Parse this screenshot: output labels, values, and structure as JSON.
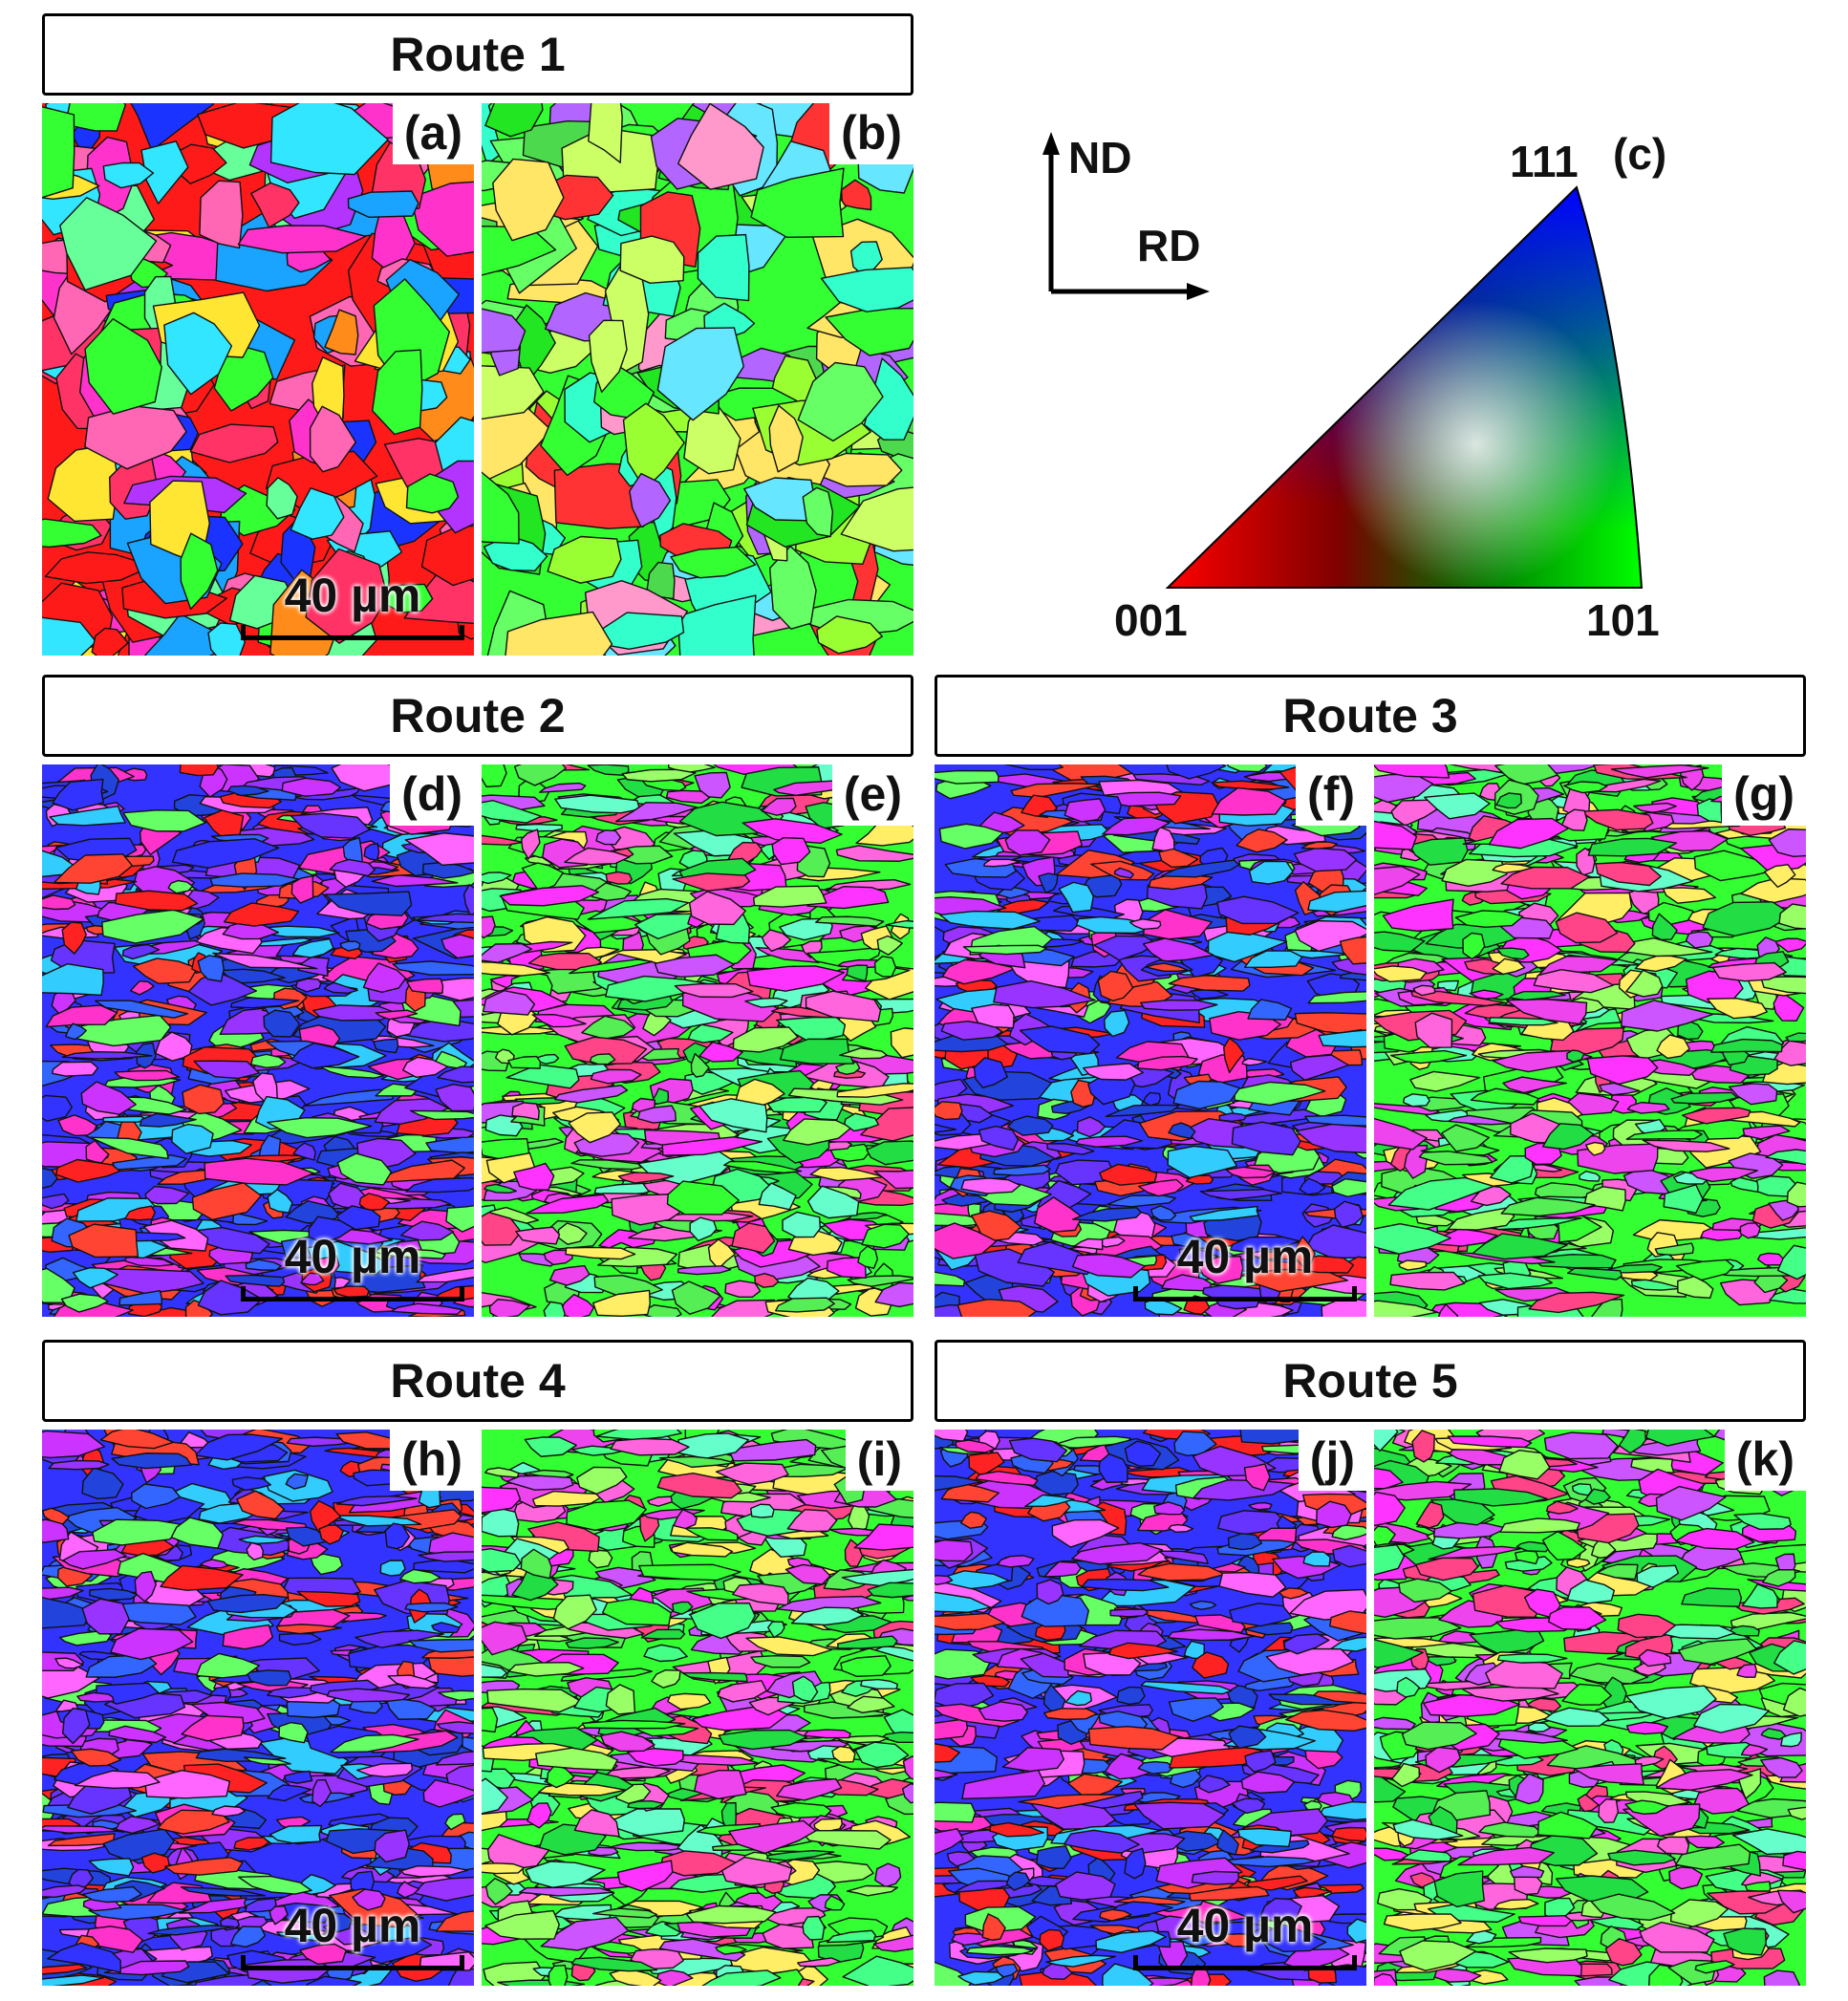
{
  "routes": [
    {
      "title": "Route 1",
      "panels": [
        {
          "label": "(a)",
          "scale": "40 µm",
          "palette": "route1_rgb"
        },
        {
          "label": "(b)",
          "scale": "",
          "palette": "route1_green"
        }
      ]
    },
    {
      "title": "Route 2",
      "panels": [
        {
          "label": "(d)",
          "scale": "40 µm",
          "palette": "rolled_rb"
        },
        {
          "label": "(e)",
          "scale": "",
          "palette": "rolled_gm"
        }
      ]
    },
    {
      "title": "Route 3",
      "panels": [
        {
          "label": "(f)",
          "scale": "40 µm",
          "palette": "rolled_rb"
        },
        {
          "label": "(g)",
          "scale": "",
          "palette": "rolled_gm"
        }
      ]
    },
    {
      "title": "Route 4",
      "panels": [
        {
          "label": "(h)",
          "scale": "40 µm",
          "palette": "rolled_rb"
        },
        {
          "label": "(i)",
          "scale": "",
          "palette": "rolled_gm"
        }
      ]
    },
    {
      "title": "Route 5",
      "panels": [
        {
          "label": "(j)",
          "scale": "40 µm",
          "palette": "rolled_rb"
        },
        {
          "label": "(k)",
          "scale": "",
          "palette": "rolled_gm"
        }
      ]
    }
  ],
  "legend": {
    "label": "(c)",
    "axis_vertical": "ND",
    "axis_horizontal": "RD",
    "corner_001": "001",
    "corner_101": "101",
    "corner_111": "111",
    "colors": {
      "c001": "#ff0000",
      "c101": "#00ff00",
      "c111": "#0000ff"
    }
  },
  "palettes": {
    "route1_rgb": [
      "#ff1a1a",
      "#ff8c1a",
      "#1a33ff",
      "#33ff33",
      "#ff33cc",
      "#33e6ff",
      "#b333ff",
      "#ffe633",
      "#ff3366",
      "#1aa3ff",
      "#66ff99",
      "#ff66b3"
    ],
    "route1_green": [
      "#33ff33",
      "#22e622",
      "#66ff66",
      "#99ff33",
      "#33ffcc",
      "#ff3333",
      "#b366ff",
      "#ffe666",
      "#66e6ff",
      "#4dd94d",
      "#ccff66",
      "#ff99cc"
    ],
    "rolled_rb": [
      "#3333ff",
      "#6633ff",
      "#ff2222",
      "#9933ff",
      "#ff33cc",
      "#3366ff",
      "#cc33ff",
      "#2244dd",
      "#ff4433",
      "#33ccff",
      "#66ff66",
      "#ff66ff"
    ],
    "rolled_gm": [
      "#33ff33",
      "#ff33ff",
      "#55ee55",
      "#ff66dd",
      "#99ff66",
      "#22dd44",
      "#cc55ff",
      "#ffee66",
      "#66ffcc",
      "#ff4488",
      "#44ff88",
      "#ee44ee"
    ]
  }
}
